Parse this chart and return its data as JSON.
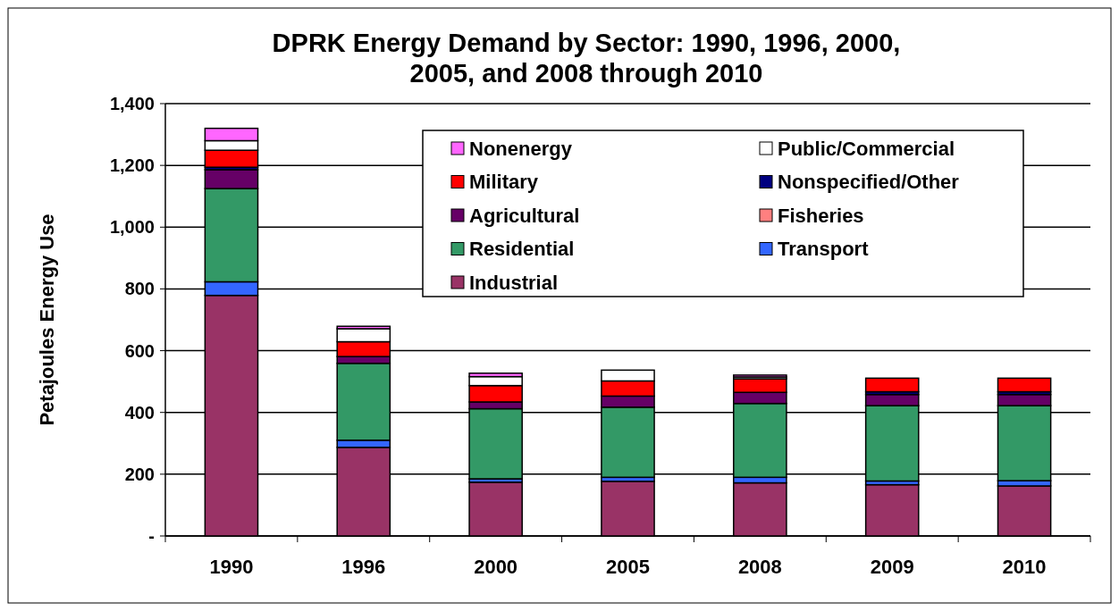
{
  "chart_data": {
    "type": "bar",
    "stacked": true,
    "title": "DPRK Energy Demand by Sector: 1990, 1996, 2000, 2005, and 2008 through 2010",
    "ylabel": "Petajoules Energy Use",
    "categories": [
      "1990",
      "1996",
      "2000",
      "2005",
      "2008",
      "2009",
      "2010"
    ],
    "series": [
      {
        "name": "Industrial",
        "color": "#993366",
        "values": [
          779,
          287,
          174,
          177,
          172,
          166,
          162
        ]
      },
      {
        "name": "Transport",
        "color": "#3366ff",
        "values": [
          44,
          23,
          11,
          13,
          18,
          12,
          17
        ]
      },
      {
        "name": "Residential",
        "color": "#339966",
        "values": [
          302,
          249,
          227,
          227,
          239,
          244,
          243
        ]
      },
      {
        "name": "Fisheries",
        "color": "#ff8080",
        "values": [
          0,
          0,
          0,
          0,
          0,
          0,
          0
        ]
      },
      {
        "name": "Agricultural",
        "color": "#660066",
        "values": [
          61,
          22,
          22,
          36,
          36,
          36,
          36
        ]
      },
      {
        "name": "Nonspecified/Other",
        "color": "#000080",
        "values": [
          8,
          0,
          0,
          0,
          0,
          9,
          9
        ]
      },
      {
        "name": "Military",
        "color": "#ff0000",
        "values": [
          55,
          48,
          53,
          49,
          44,
          44,
          44
        ]
      },
      {
        "name": "Public/Commercial",
        "color": "#ffffff",
        "values": [
          31,
          42,
          29,
          35,
          6,
          0,
          0
        ]
      },
      {
        "name": "Nonenergy",
        "color": "#ff66ff",
        "values": [
          40,
          8,
          11,
          0,
          6,
          0,
          0
        ]
      }
    ],
    "ylim": [
      0,
      1400
    ],
    "yticks": [
      {
        "value": 0,
        "label": "-"
      },
      200,
      400,
      600,
      800,
      {
        "value": 1000,
        "label": "1,000"
      },
      {
        "value": 1200,
        "label": "1,200"
      },
      {
        "value": 1400,
        "label": "1,400"
      }
    ],
    "grid": "y",
    "legend": "top right"
  }
}
